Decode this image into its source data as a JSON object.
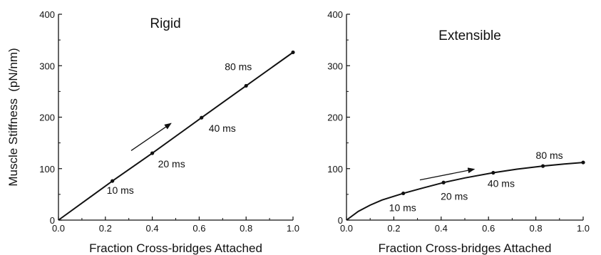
{
  "chart_data": [
    {
      "type": "line",
      "title": "Rigid",
      "xlabel": "Fraction Cross-bridges Attached",
      "ylabel": "Muscle Stiffness  (pN/nm)",
      "xlim": [
        0.0,
        1.0
      ],
      "ylim": [
        0,
        400
      ],
      "xticks": [
        "0.0",
        "0.2",
        "0.4",
        "0.6",
        "0.8",
        "1.0"
      ],
      "yticks": [
        "0",
        "100",
        "200",
        "300",
        "400"
      ],
      "grid": false,
      "series": [
        {
          "x": [
            0.0,
            0.23,
            0.4,
            0.61,
            0.8,
            1.0
          ],
          "y": [
            0,
            76,
            130,
            199,
            261,
            326
          ]
        }
      ],
      "annotations": [
        {
          "text": "10 ms",
          "x": 0.23,
          "y": 76
        },
        {
          "text": "20 ms",
          "x": 0.4,
          "y": 130
        },
        {
          "text": "40 ms",
          "x": 0.61,
          "y": 199
        },
        {
          "text": "80 ms",
          "x": 0.8,
          "y": 261
        }
      ],
      "arrow": {
        "from": [
          0.31,
          135
        ],
        "to": [
          0.48,
          188
        ]
      }
    },
    {
      "type": "line",
      "title": "Extensible",
      "xlabel": "Fraction Cross-bridges Attached",
      "ylabel": "",
      "xlim": [
        0.0,
        1.0
      ],
      "ylim": [
        0,
        400
      ],
      "xticks": [
        "0.0",
        "0.2",
        "0.4",
        "0.6",
        "0.8",
        "1.0"
      ],
      "yticks": [
        "0",
        "100",
        "200",
        "300",
        "400"
      ],
      "grid": false,
      "series": [
        {
          "x": [
            0.0,
            0.05,
            0.1,
            0.15,
            0.24,
            0.32,
            0.41,
            0.5,
            0.62,
            0.72,
            0.83,
            0.92,
            1.0
          ],
          "y": [
            0,
            17,
            29,
            39,
            52,
            62,
            73,
            82,
            92,
            99,
            105,
            109,
            112
          ],
          "markers": [
            0.24,
            0.41,
            0.62,
            0.83,
            1.0
          ]
        }
      ],
      "annotations": [
        {
          "text": "10 ms",
          "x": 0.24,
          "y": 52
        },
        {
          "text": "20 ms",
          "x": 0.41,
          "y": 73
        },
        {
          "text": "40 ms",
          "x": 0.62,
          "y": 92
        },
        {
          "text": "80 ms",
          "x": 0.83,
          "y": 105
        }
      ],
      "arrow": {
        "from": [
          0.31,
          78
        ],
        "to": [
          0.54,
          99
        ]
      }
    }
  ]
}
